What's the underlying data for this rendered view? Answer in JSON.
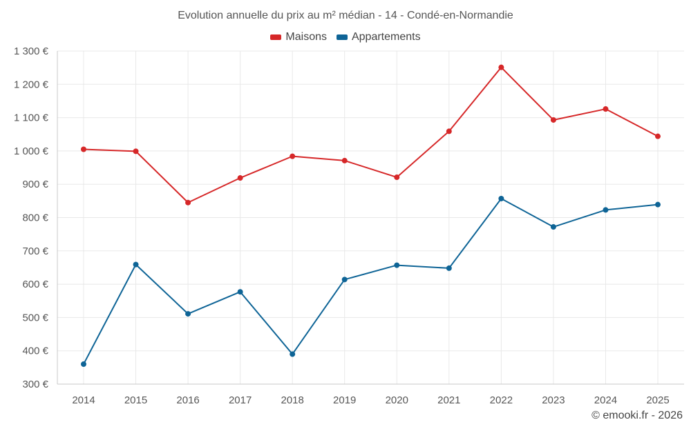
{
  "colors": {
    "maisons": "#d62728",
    "appartements": "#0e6496",
    "grid": "#e8e8e8",
    "axis": "#c8c8c8",
    "tick_text": "#555555"
  },
  "chart_data": {
    "type": "line",
    "title": "Evolution annuelle du prix au m² médian - 14 - Condé-en-Normandie",
    "categories": [
      "2014",
      "2015",
      "2016",
      "2017",
      "2018",
      "2019",
      "2020",
      "2021",
      "2022",
      "2023",
      "2024",
      "2025"
    ],
    "series": [
      {
        "name": "Maisons",
        "color": "#d62728",
        "values": [
          1005,
          999,
          845,
          919,
          984,
          971,
          921,
          1059,
          1251,
          1093,
          1126,
          1044
        ]
      },
      {
        "name": "Appartements",
        "color": "#0e6496",
        "values": [
          360,
          659,
          511,
          577,
          390,
          614,
          657,
          648,
          857,
          772,
          823,
          839
        ]
      }
    ],
    "ylim": [
      300,
      1300
    ],
    "yticks": [
      300,
      400,
      500,
      600,
      700,
      800,
      900,
      1000,
      1100,
      1200,
      1300
    ],
    "ytick_labels": [
      "300 €",
      "400 €",
      "500 €",
      "600 €",
      "700 €",
      "800 €",
      "900 €",
      "1 000 €",
      "1 100 €",
      "1 200 €",
      "1 300 €"
    ],
    "xlabel": "",
    "ylabel": "",
    "grid": true,
    "legend": "top-center"
  },
  "legend_items": [
    {
      "label": "Maisons"
    },
    {
      "label": "Appartements"
    }
  ],
  "copyright": "© emooki.fr - 2026"
}
